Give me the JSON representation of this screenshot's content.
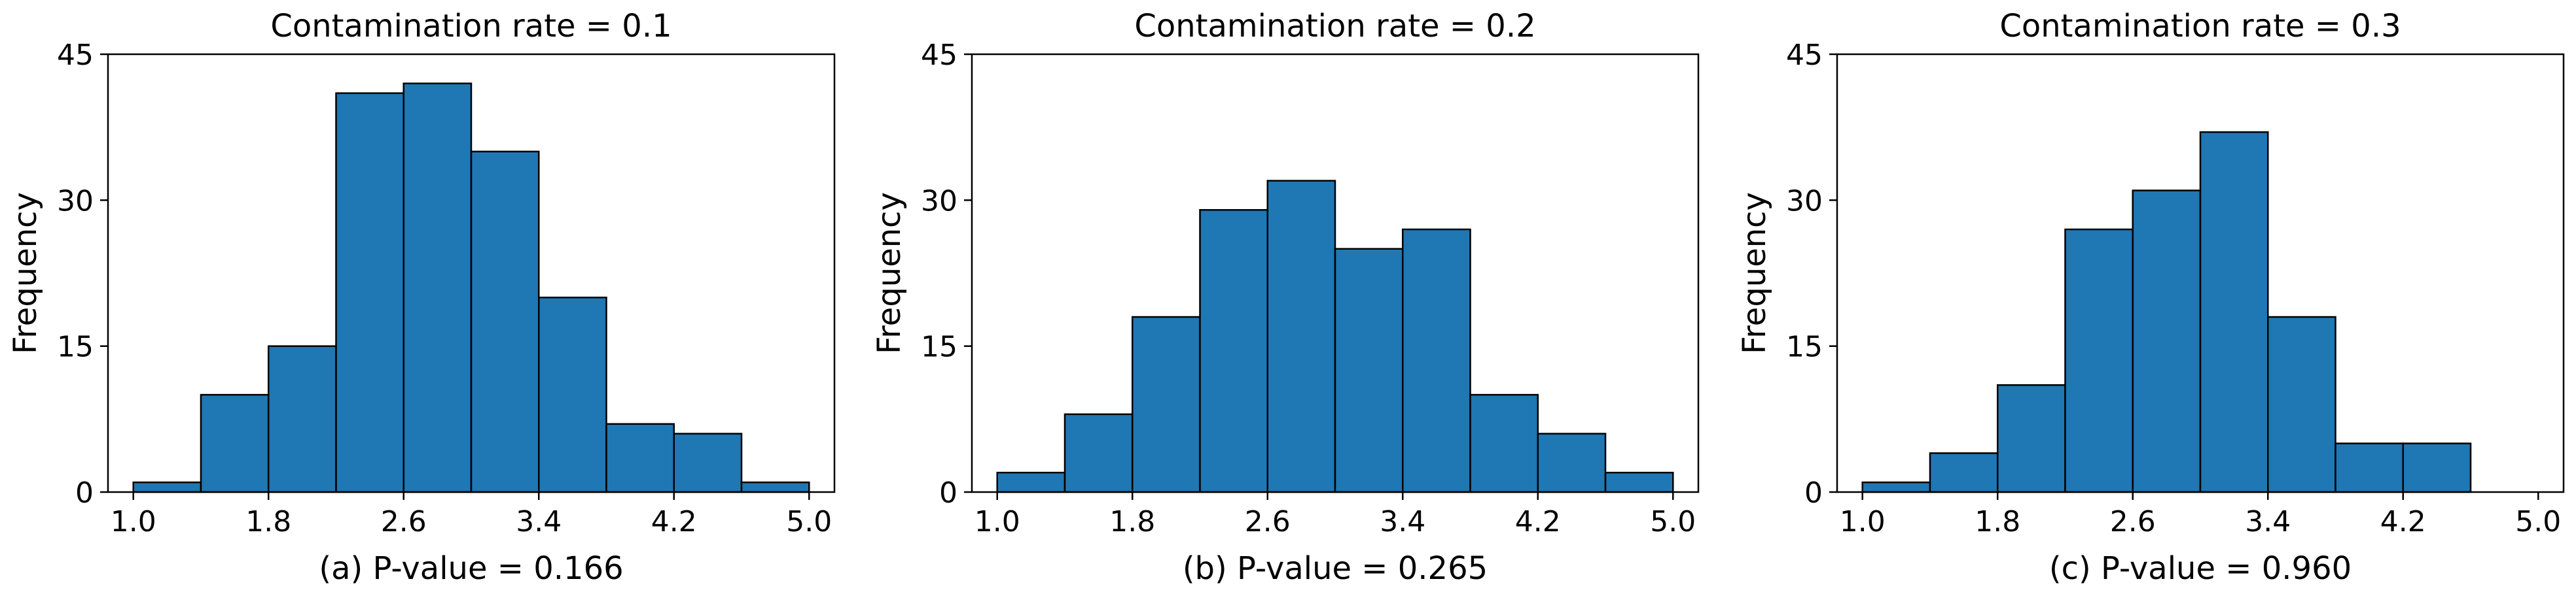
{
  "colors": {
    "bar_fill": "#1f77b4",
    "bar_edge": "#000000",
    "axes": "#000000",
    "background": "#ffffff"
  },
  "chart_data": [
    {
      "type": "bar",
      "title": "Contamination rate = 0.1",
      "caption": "(a) P-value = 0.166",
      "xlabel": "",
      "ylabel": "Frequency",
      "bin_edges": [
        1.0,
        1.4,
        1.8,
        2.2,
        2.6,
        3.0,
        3.4,
        3.8,
        4.2,
        4.6,
        5.0
      ],
      "values": [
        1,
        10,
        15,
        41,
        42,
        35,
        20,
        7,
        6,
        1
      ],
      "xticks": [
        1.0,
        1.8,
        2.6,
        3.4,
        4.2,
        5.0
      ],
      "xtick_labels": [
        "1.0",
        "1.8",
        "2.6",
        "3.4",
        "4.2",
        "5.0"
      ],
      "yticks": [
        0,
        15,
        30,
        45
      ],
      "ytick_labels": [
        "0",
        "15",
        "30",
        "45"
      ],
      "xlim": [
        0.85,
        5.15
      ],
      "ylim": [
        0,
        45
      ],
      "grid": false
    },
    {
      "type": "bar",
      "title": "Contamination rate = 0.2",
      "caption": "(b) P-value = 0.265",
      "xlabel": "",
      "ylabel": "Frequency",
      "bin_edges": [
        1.0,
        1.4,
        1.8,
        2.2,
        2.6,
        3.0,
        3.4,
        3.8,
        4.2,
        4.6,
        5.0
      ],
      "values": [
        2,
        8,
        18,
        29,
        32,
        25,
        27,
        10,
        6,
        2
      ],
      "xticks": [
        1.0,
        1.8,
        2.6,
        3.4,
        4.2,
        5.0
      ],
      "xtick_labels": [
        "1.0",
        "1.8",
        "2.6",
        "3.4",
        "4.2",
        "5.0"
      ],
      "yticks": [
        0,
        15,
        30,
        45
      ],
      "ytick_labels": [
        "0",
        "15",
        "30",
        "45"
      ],
      "xlim": [
        0.85,
        5.15
      ],
      "ylim": [
        0,
        45
      ],
      "grid": false
    },
    {
      "type": "bar",
      "title": "Contamination rate = 0.3",
      "caption": "(c) P-value = 0.960",
      "xlabel": "",
      "ylabel": "Frequency",
      "bin_edges": [
        1.0,
        1.4,
        1.8,
        2.2,
        2.6,
        3.0,
        3.4,
        3.8,
        4.2,
        4.6,
        5.0
      ],
      "values": [
        1,
        4,
        11,
        27,
        31,
        37,
        18,
        5,
        5,
        0
      ],
      "xticks": [
        1.0,
        1.8,
        2.6,
        3.4,
        4.2,
        5.0
      ],
      "xtick_labels": [
        "1.0",
        "1.8",
        "2.6",
        "3.4",
        "4.2",
        "5.0"
      ],
      "yticks": [
        0,
        15,
        30,
        45
      ],
      "ytick_labels": [
        "0",
        "15",
        "30",
        "45"
      ],
      "xlim": [
        0.85,
        5.15
      ],
      "ylim": [
        0,
        45
      ],
      "grid": false
    }
  ]
}
